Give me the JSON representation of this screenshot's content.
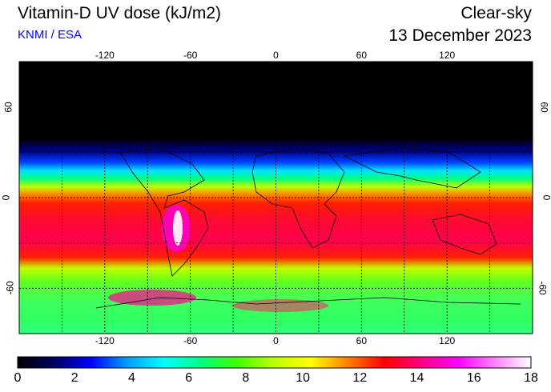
{
  "header": {
    "title": "Vitamin-D UV dose (kJ/m2)",
    "credit": "KNMI / ESA",
    "sky": "Clear-sky",
    "date": "13 December 2023"
  },
  "map": {
    "lon_ticks": [
      "-120",
      "-60",
      "0",
      "60",
      "120"
    ],
    "lat_ticks": [
      "60",
      "0",
      "-60"
    ],
    "lon_range": [
      -180,
      180
    ],
    "lat_range": [
      -90,
      90
    ],
    "grid_lon_step": 30,
    "grid_lat_step": 30
  },
  "colorbar": {
    "labels": [
      "0",
      "2",
      "4",
      "6",
      "8",
      "10",
      "12",
      "14",
      "16",
      "18"
    ],
    "range": [
      0,
      18
    ],
    "colors": [
      "#000000",
      "#000060",
      "#0000ff",
      "#00a0ff",
      "#00ffff",
      "#00ff80",
      "#40ff00",
      "#c0ff00",
      "#ffff00",
      "#ff8000",
      "#ff0000",
      "#ff0080",
      "#ff00ff",
      "#ff80ff",
      "#ffffff"
    ]
  }
}
